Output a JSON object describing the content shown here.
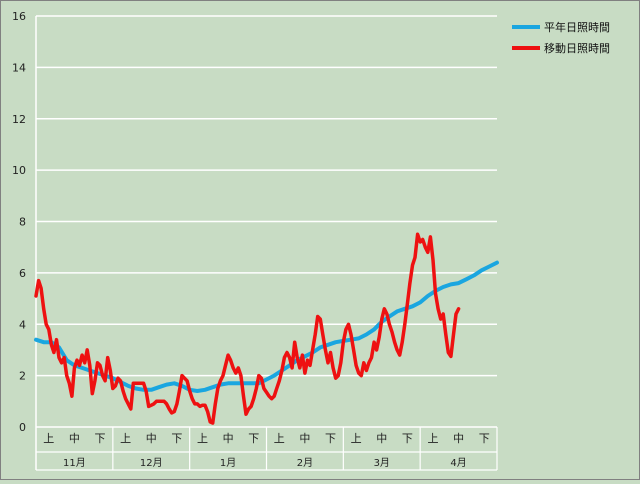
{
  "chart_data": {
    "type": "line",
    "title": "",
    "xlabel": "",
    "ylabel": "",
    "ylim": [
      0,
      16
    ],
    "y_ticks": [
      0,
      2,
      4,
      6,
      8,
      10,
      12,
      14,
      16
    ],
    "grid": true,
    "grid_axis": "y",
    "legend_position": "top-right",
    "x_range_days": [
      0,
      180
    ],
    "sub_ticks": [
      {
        "label": "上",
        "day": 5
      },
      {
        "label": "中",
        "day": 15
      },
      {
        "label": "下",
        "day": 25
      },
      {
        "label": "上",
        "day": 35
      },
      {
        "label": "中",
        "day": 45
      },
      {
        "label": "下",
        "day": 55
      },
      {
        "label": "上",
        "day": 65
      },
      {
        "label": "中",
        "day": 75
      },
      {
        "label": "下",
        "day": 85
      },
      {
        "label": "上",
        "day": 95
      },
      {
        "label": "中",
        "day": 105
      },
      {
        "label": "下",
        "day": 115
      },
      {
        "label": "上",
        "day": 125
      },
      {
        "label": "中",
        "day": 135
      },
      {
        "label": "下",
        "day": 145
      },
      {
        "label": "上",
        "day": 155
      },
      {
        "label": "中",
        "day": 165
      },
      {
        "label": "下",
        "day": 175
      }
    ],
    "months": [
      {
        "label": "11月",
        "start": 0,
        "end": 30
      },
      {
        "label": "12月",
        "start": 30,
        "end": 60
      },
      {
        "label": "1月",
        "start": 60,
        "end": 90
      },
      {
        "label": "2月",
        "start": 90,
        "end": 120
      },
      {
        "label": "3月",
        "start": 120,
        "end": 150
      },
      {
        "label": "4月",
        "start": 150,
        "end": 180
      }
    ],
    "series": [
      {
        "name": "平年日照時間",
        "color": "#1aa6e0",
        "points": [
          [
            0,
            3.4
          ],
          [
            3,
            3.3
          ],
          [
            6,
            3.3
          ],
          [
            9,
            3.1
          ],
          [
            12,
            2.6
          ],
          [
            15,
            2.4
          ],
          [
            18,
            2.3
          ],
          [
            21,
            2.2
          ],
          [
            24,
            2.1
          ],
          [
            27,
            2.0
          ],
          [
            30,
            1.9
          ],
          [
            33,
            1.75
          ],
          [
            36,
            1.6
          ],
          [
            39,
            1.5
          ],
          [
            42,
            1.45
          ],
          [
            45,
            1.45
          ],
          [
            48,
            1.55
          ],
          [
            51,
            1.65
          ],
          [
            54,
            1.7
          ],
          [
            57,
            1.6
          ],
          [
            60,
            1.45
          ],
          [
            63,
            1.4
          ],
          [
            66,
            1.45
          ],
          [
            69,
            1.55
          ],
          [
            72,
            1.65
          ],
          [
            75,
            1.7
          ],
          [
            78,
            1.7
          ],
          [
            81,
            1.7
          ],
          [
            84,
            1.7
          ],
          [
            87,
            1.7
          ],
          [
            90,
            1.85
          ],
          [
            93,
            2.0
          ],
          [
            96,
            2.2
          ],
          [
            99,
            2.4
          ],
          [
            102,
            2.6
          ],
          [
            105,
            2.75
          ],
          [
            108,
            2.9
          ],
          [
            111,
            3.1
          ],
          [
            114,
            3.2
          ],
          [
            117,
            3.3
          ],
          [
            120,
            3.35
          ],
          [
            123,
            3.4
          ],
          [
            126,
            3.45
          ],
          [
            129,
            3.6
          ],
          [
            132,
            3.8
          ],
          [
            135,
            4.1
          ],
          [
            138,
            4.3
          ],
          [
            141,
            4.5
          ],
          [
            144,
            4.6
          ],
          [
            147,
            4.7
          ],
          [
            150,
            4.85
          ],
          [
            153,
            5.1
          ],
          [
            156,
            5.3
          ],
          [
            159,
            5.45
          ],
          [
            162,
            5.55
          ],
          [
            165,
            5.6
          ],
          [
            168,
            5.75
          ],
          [
            171,
            5.9
          ],
          [
            174,
            6.1
          ],
          [
            177,
            6.25
          ],
          [
            180,
            6.4
          ]
        ]
      },
      {
        "name": "移動日照時間",
        "color": "#ee1111",
        "points": [
          [
            0,
            5.1
          ],
          [
            1,
            5.7
          ],
          [
            2,
            5.4
          ],
          [
            3,
            4.6
          ],
          [
            4,
            4.0
          ],
          [
            5,
            3.8
          ],
          [
            6,
            3.2
          ],
          [
            7,
            2.9
          ],
          [
            8,
            3.4
          ],
          [
            9,
            2.7
          ],
          [
            10,
            2.5
          ],
          [
            11,
            2.7
          ],
          [
            12,
            2.0
          ],
          [
            13,
            1.7
          ],
          [
            14,
            1.2
          ],
          [
            15,
            2.3
          ],
          [
            16,
            2.6
          ],
          [
            17,
            2.4
          ],
          [
            18,
            2.8
          ],
          [
            19,
            2.5
          ],
          [
            20,
            3.0
          ],
          [
            21,
            2.4
          ],
          [
            22,
            1.3
          ],
          [
            23,
            1.8
          ],
          [
            24,
            2.5
          ],
          [
            25,
            2.4
          ],
          [
            26,
            2.0
          ],
          [
            27,
            1.8
          ],
          [
            28,
            2.7
          ],
          [
            29,
            2.2
          ],
          [
            30,
            1.5
          ],
          [
            31,
            1.6
          ],
          [
            32,
            1.9
          ],
          [
            33,
            1.8
          ],
          [
            34,
            1.4
          ],
          [
            35,
            1.1
          ],
          [
            36,
            0.9
          ],
          [
            37,
            0.7
          ],
          [
            38,
            1.7
          ],
          [
            39,
            1.7
          ],
          [
            40,
            1.7
          ],
          [
            41,
            1.7
          ],
          [
            42,
            1.7
          ],
          [
            43,
            1.4
          ],
          [
            44,
            0.8
          ],
          [
            45,
            0.85
          ],
          [
            46,
            0.9
          ],
          [
            47,
            1.0
          ],
          [
            48,
            1.0
          ],
          [
            49,
            1.0
          ],
          [
            50,
            1.0
          ],
          [
            51,
            0.9
          ],
          [
            52,
            0.7
          ],
          [
            53,
            0.55
          ],
          [
            54,
            0.6
          ],
          [
            55,
            0.9
          ],
          [
            56,
            1.4
          ],
          [
            57,
            2.0
          ],
          [
            58,
            1.9
          ],
          [
            59,
            1.8
          ],
          [
            60,
            1.4
          ],
          [
            61,
            1.1
          ],
          [
            62,
            0.9
          ],
          [
            63,
            0.9
          ],
          [
            64,
            0.8
          ],
          [
            65,
            0.85
          ],
          [
            66,
            0.85
          ],
          [
            67,
            0.6
          ],
          [
            68,
            0.2
          ],
          [
            69,
            0.15
          ],
          [
            70,
            0.9
          ],
          [
            71,
            1.5
          ],
          [
            72,
            1.8
          ],
          [
            73,
            2.0
          ],
          [
            74,
            2.4
          ],
          [
            75,
            2.8
          ],
          [
            76,
            2.6
          ],
          [
            77,
            2.3
          ],
          [
            78,
            2.1
          ],
          [
            79,
            2.3
          ],
          [
            80,
            2.0
          ],
          [
            81,
            1.2
          ],
          [
            82,
            0.5
          ],
          [
            83,
            0.7
          ],
          [
            84,
            0.8
          ],
          [
            85,
            1.1
          ],
          [
            86,
            1.5
          ],
          [
            87,
            2.0
          ],
          [
            88,
            1.9
          ],
          [
            89,
            1.5
          ],
          [
            90,
            1.35
          ],
          [
            91,
            1.2
          ],
          [
            92,
            1.1
          ],
          [
            93,
            1.2
          ],
          [
            94,
            1.5
          ],
          [
            95,
            1.8
          ],
          [
            96,
            2.2
          ],
          [
            97,
            2.7
          ],
          [
            98,
            2.9
          ],
          [
            99,
            2.7
          ],
          [
            100,
            2.3
          ],
          [
            101,
            3.3
          ],
          [
            102,
            2.7
          ],
          [
            103,
            2.3
          ],
          [
            104,
            2.8
          ],
          [
            105,
            2.1
          ],
          [
            106,
            2.6
          ],
          [
            107,
            2.4
          ],
          [
            108,
            3.0
          ],
          [
            109,
            3.6
          ],
          [
            110,
            4.3
          ],
          [
            111,
            4.2
          ],
          [
            112,
            3.6
          ],
          [
            113,
            3.0
          ],
          [
            114,
            2.5
          ],
          [
            115,
            2.9
          ],
          [
            116,
            2.3
          ],
          [
            117,
            1.9
          ],
          [
            118,
            2.0
          ],
          [
            119,
            2.5
          ],
          [
            120,
            3.3
          ],
          [
            121,
            3.8
          ],
          [
            122,
            4.0
          ],
          [
            123,
            3.6
          ],
          [
            124,
            3.0
          ],
          [
            125,
            2.4
          ],
          [
            126,
            2.1
          ],
          [
            127,
            2.0
          ],
          [
            128,
            2.5
          ],
          [
            129,
            2.2
          ],
          [
            130,
            2.5
          ],
          [
            131,
            2.7
          ],
          [
            132,
            3.3
          ],
          [
            133,
            3.0
          ],
          [
            134,
            3.5
          ],
          [
            135,
            4.2
          ],
          [
            136,
            4.6
          ],
          [
            137,
            4.4
          ],
          [
            138,
            4.0
          ],
          [
            139,
            3.7
          ],
          [
            140,
            3.3
          ],
          [
            141,
            3.0
          ],
          [
            142,
            2.8
          ],
          [
            143,
            3.3
          ],
          [
            144,
            4.0
          ],
          [
            145,
            4.8
          ],
          [
            146,
            5.6
          ],
          [
            147,
            6.3
          ],
          [
            148,
            6.6
          ],
          [
            149,
            7.5
          ],
          [
            150,
            7.2
          ],
          [
            151,
            7.3
          ],
          [
            152,
            7.0
          ],
          [
            153,
            6.8
          ],
          [
            154,
            7.4
          ],
          [
            155,
            6.5
          ],
          [
            156,
            5.2
          ],
          [
            157,
            4.6
          ],
          [
            158,
            4.2
          ],
          [
            159,
            4.4
          ],
          [
            160,
            3.6
          ],
          [
            161,
            2.9
          ],
          [
            162,
            2.75
          ],
          [
            163,
            3.6
          ],
          [
            164,
            4.4
          ],
          [
            165,
            4.6
          ]
        ]
      }
    ]
  }
}
